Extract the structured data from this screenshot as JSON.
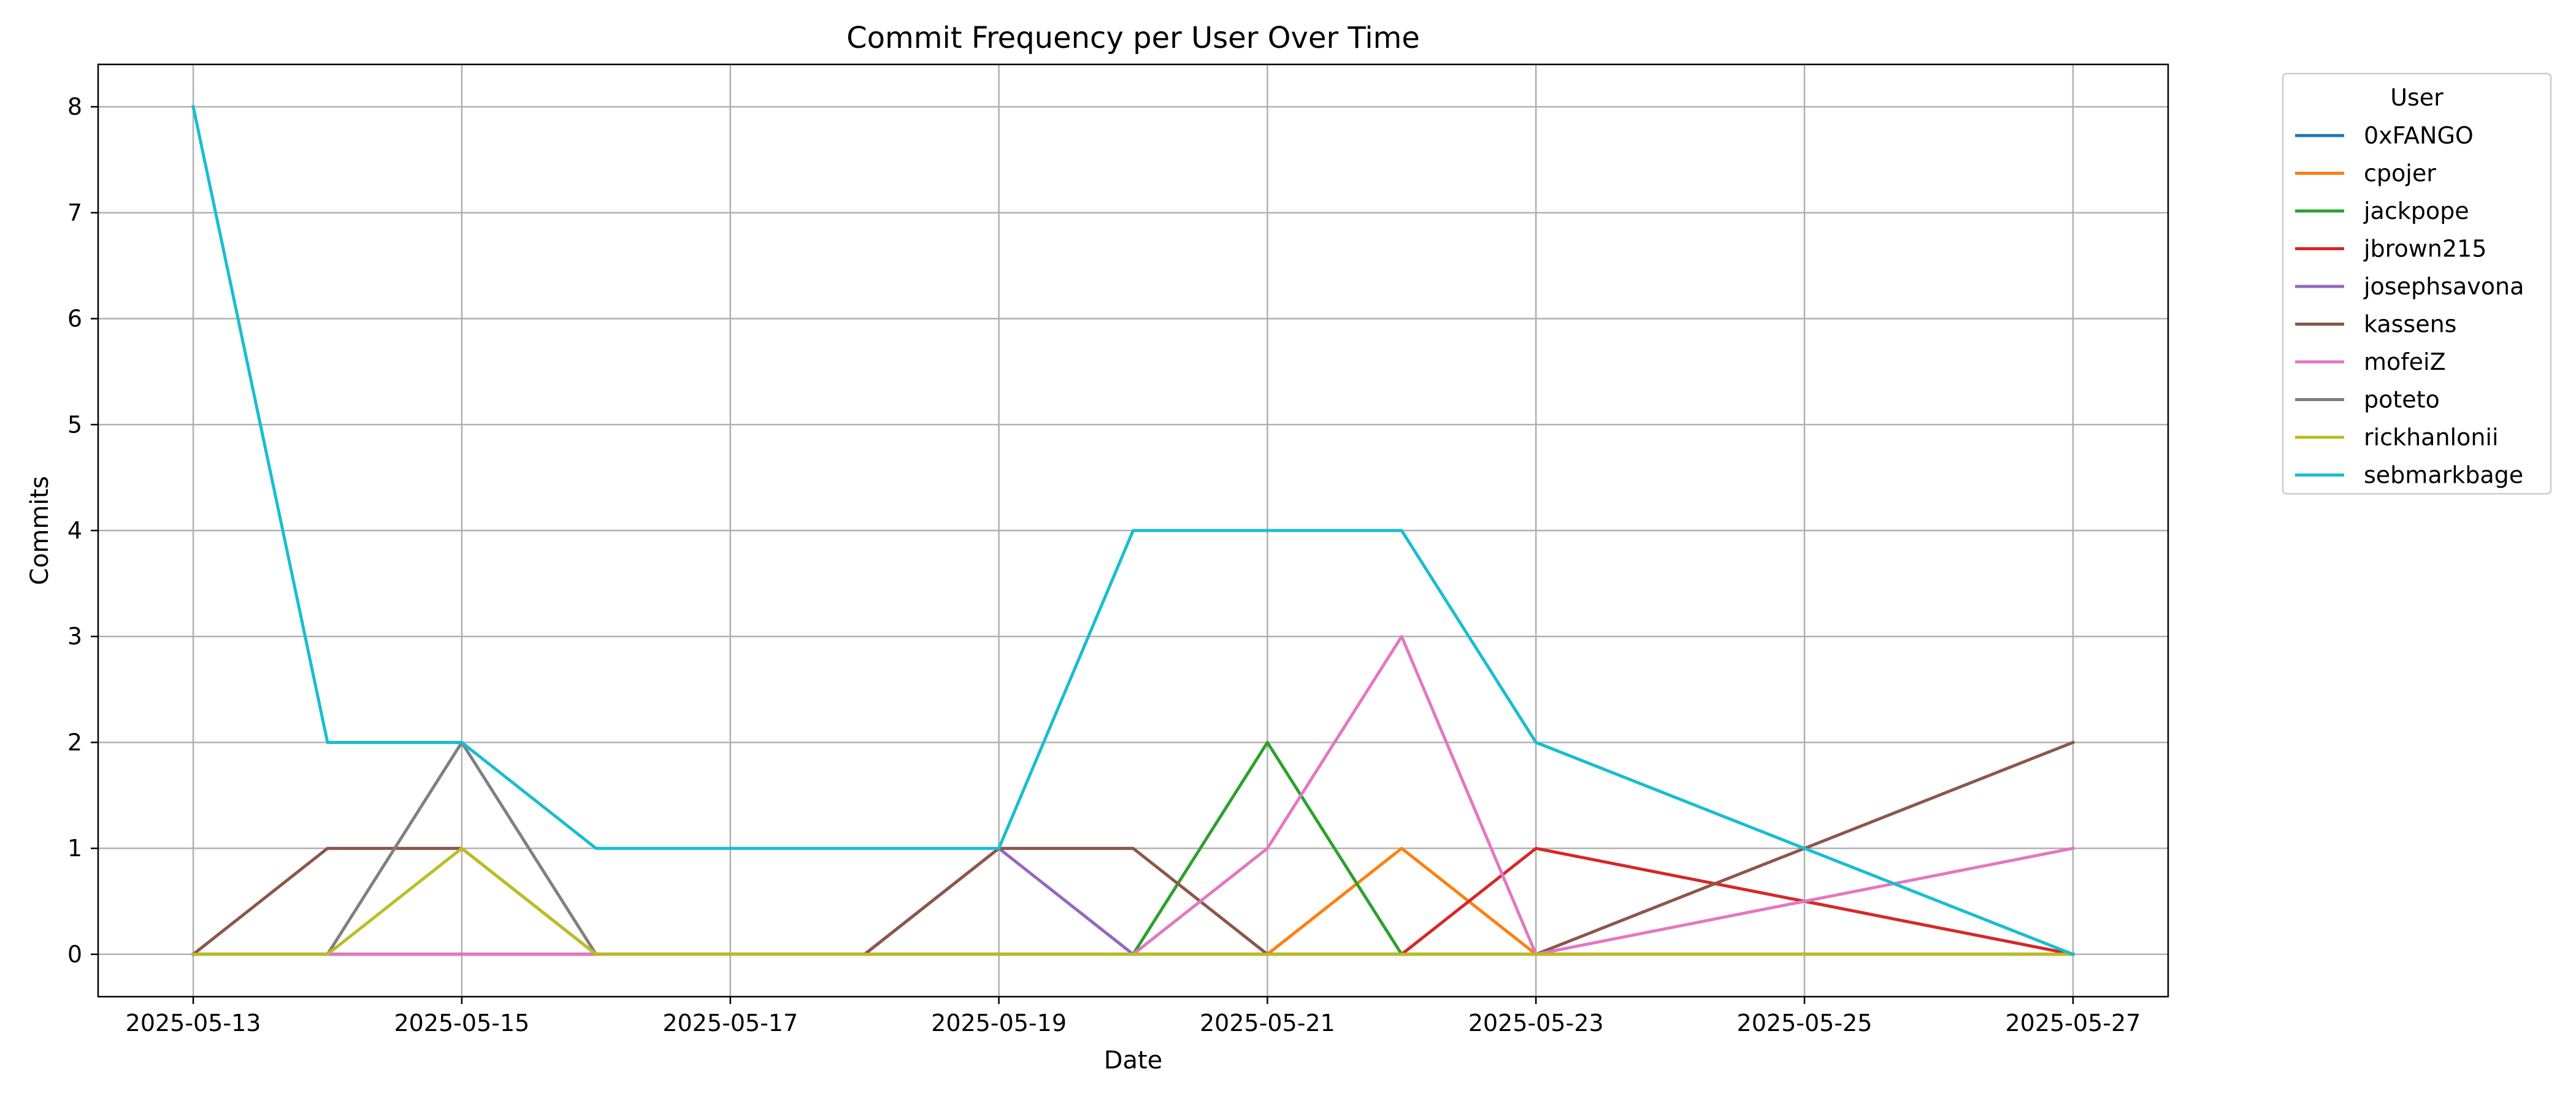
{
  "chart_data": {
    "type": "line",
    "title": "Commit Frequency per User Over Time",
    "xlabel": "Date",
    "ylabel": "Commits",
    "legend_title": "User",
    "legend_placement": "outside-top-right",
    "grid": true,
    "x": [
      "2025-05-13",
      "2025-05-14",
      "2025-05-15",
      "2025-05-16",
      "2025-05-17",
      "2025-05-18",
      "2025-05-19",
      "2025-05-20",
      "2025-05-21",
      "2025-05-22",
      "2025-05-23",
      "2025-05-25",
      "2025-05-27"
    ],
    "xlim": [
      "2025-05-12T07:00",
      "2025-05-27T17:00"
    ],
    "xticks": [
      "2025-05-13",
      "2025-05-15",
      "2025-05-17",
      "2025-05-19",
      "2025-05-21",
      "2025-05-23",
      "2025-05-25",
      "2025-05-27"
    ],
    "ylim": [
      -0.4,
      8.4
    ],
    "yticks": [
      0,
      1,
      2,
      3,
      4,
      5,
      6,
      7,
      8
    ],
    "series": [
      {
        "name": "0xFANGO",
        "color": "#1f77b4",
        "values": [
          0,
          0,
          0,
          0,
          0,
          0,
          0,
          0,
          0,
          0,
          0,
          0,
          0
        ]
      },
      {
        "name": "cpojer",
        "color": "#ff7f0e",
        "values": [
          0,
          0,
          0,
          0,
          0,
          0,
          0,
          0,
          0,
          1,
          0,
          0,
          0
        ]
      },
      {
        "name": "jackpope",
        "color": "#2ca02c",
        "values": [
          0,
          0,
          0,
          0,
          0,
          0,
          0,
          0,
          2,
          0,
          0,
          0,
          0
        ]
      },
      {
        "name": "jbrown215",
        "color": "#d62728",
        "values": [
          0,
          0,
          0,
          0,
          0,
          0,
          0,
          0,
          0,
          0,
          1,
          0.5,
          0
        ]
      },
      {
        "name": "josephsavona",
        "color": "#9467bd",
        "values": [
          0,
          0,
          0,
          0,
          0,
          0,
          1,
          0,
          0,
          0,
          0,
          0,
          0
        ]
      },
      {
        "name": "kassens",
        "color": "#8c564b",
        "values": [
          0,
          1,
          1,
          0,
          0,
          0,
          1,
          1,
          0,
          0,
          0,
          1,
          2
        ]
      },
      {
        "name": "mofeiZ",
        "color": "#e377c2",
        "values": [
          0,
          0,
          0,
          0,
          0,
          0,
          0,
          0,
          1,
          3,
          0,
          0.5,
          1
        ]
      },
      {
        "name": "poteto",
        "color": "#7f7f7f",
        "values": [
          0,
          0,
          2,
          0,
          0,
          0,
          0,
          0,
          0,
          0,
          0,
          0,
          0
        ]
      },
      {
        "name": "rickhanlonii",
        "color": "#bcbd22",
        "values": [
          0,
          0,
          1,
          0,
          0,
          0,
          0,
          0,
          0,
          0,
          0,
          0,
          0
        ]
      },
      {
        "name": "sebmarkbage",
        "color": "#17becf",
        "values": [
          8,
          2,
          2,
          1,
          1,
          1,
          1,
          4,
          4,
          4,
          2,
          1,
          0
        ]
      }
    ]
  }
}
